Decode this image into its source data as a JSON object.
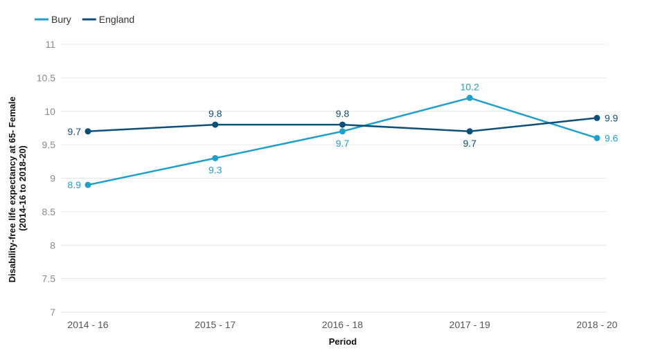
{
  "chart_data": {
    "type": "line",
    "categories": [
      "2014 - 16",
      "2015 - 17",
      "2016 - 18",
      "2017 - 19",
      "2018 - 20"
    ],
    "series": [
      {
        "name": "Bury",
        "values": [
          8.9,
          9.3,
          9.7,
          10.2,
          9.6
        ],
        "color": "#1f9fcc",
        "label_positions": [
          "left",
          "below",
          "below",
          "above",
          "right"
        ]
      },
      {
        "name": "England",
        "values": [
          9.7,
          9.8,
          9.8,
          9.7,
          9.9
        ],
        "color": "#0d4f78",
        "label_positions": [
          "left",
          "above",
          "above",
          "below",
          "right"
        ]
      }
    ],
    "y_ticks": [
      "7",
      "7.5",
      "8",
      "8.5",
      "9",
      "9.5",
      "10",
      "10.5",
      "11"
    ],
    "ylim": [
      7,
      11
    ],
    "xlabel": "Period",
    "ylabel_line1": "Disability-free life expectancy at 65- Female",
    "ylabel_line2": "(2014-16 to 2018-20)",
    "legend_position": "top-left",
    "grid": true
  }
}
